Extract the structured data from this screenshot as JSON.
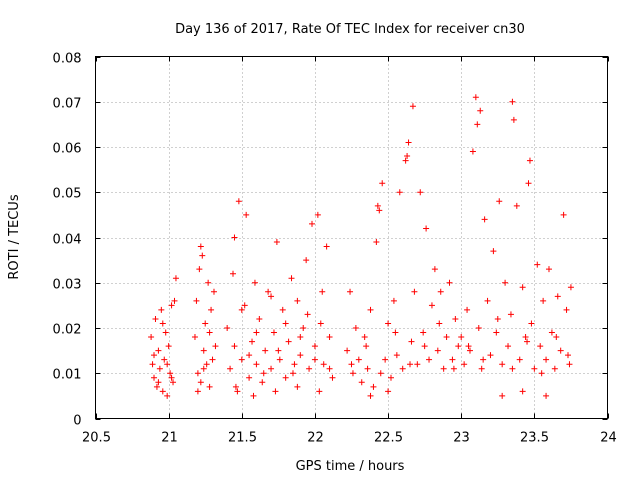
{
  "chart_data": {
    "type": "scatter",
    "title": "Day 136 of 2017, Rate Of TEC Index for receiver cn30",
    "xlabel": "GPS time / hours",
    "ylabel": "ROTI / TECUs",
    "xlim": [
      20.5,
      24
    ],
    "ylim": [
      0,
      0.08
    ],
    "xticks": [
      20.5,
      21,
      21.5,
      22,
      22.5,
      23,
      23.5,
      24
    ],
    "yticks": [
      0,
      0.01,
      0.02,
      0.03,
      0.04,
      0.05,
      0.06,
      0.07,
      0.08
    ],
    "xtick_labels": [
      "20.5",
      "21",
      "21.5",
      "22",
      "22.5",
      "23",
      "23.5",
      "24"
    ],
    "ytick_labels": [
      "0",
      "0.01",
      "0.02",
      "0.03",
      "0.04",
      "0.05",
      "0.06",
      "0.07",
      "0.08"
    ],
    "grid": true,
    "marker": "+",
    "series": [
      {
        "name": "ROTI",
        "color": "#ff0000",
        "points": [
          [
            20.88,
            0.018
          ],
          [
            20.89,
            0.012
          ],
          [
            20.9,
            0.009
          ],
          [
            20.91,
            0.022
          ],
          [
            20.92,
            0.007
          ],
          [
            20.93,
            0.015
          ],
          [
            20.94,
            0.011
          ],
          [
            20.95,
            0.024
          ],
          [
            20.96,
            0.006
          ],
          [
            20.97,
            0.013
          ],
          [
            20.98,
            0.019
          ],
          [
            20.99,
            0.005
          ],
          [
            21.0,
            0.016
          ],
          [
            21.01,
            0.01
          ],
          [
            21.02,
            0.025
          ],
          [
            21.03,
            0.008
          ],
          [
            21.04,
            0.026
          ],
          [
            21.05,
            0.031
          ],
          [
            20.9,
            0.014
          ],
          [
            20.93,
            0.008
          ],
          [
            20.96,
            0.021
          ],
          [
            20.99,
            0.012
          ],
          [
            21.02,
            0.009
          ],
          [
            21.18,
            0.018
          ],
          [
            21.19,
            0.026
          ],
          [
            21.2,
            0.01
          ],
          [
            21.21,
            0.033
          ],
          [
            21.22,
            0.008
          ],
          [
            21.23,
            0.036
          ],
          [
            21.24,
            0.015
          ],
          [
            21.25,
            0.021
          ],
          [
            21.26,
            0.012
          ],
          [
            21.27,
            0.03
          ],
          [
            21.28,
            0.007
          ],
          [
            21.29,
            0.024
          ],
          [
            21.3,
            0.013
          ],
          [
            21.31,
            0.028
          ],
          [
            21.32,
            0.016
          ],
          [
            21.2,
            0.006
          ],
          [
            21.24,
            0.011
          ],
          [
            21.28,
            0.019
          ],
          [
            21.22,
            0.038
          ],
          [
            21.4,
            0.02
          ],
          [
            21.42,
            0.011
          ],
          [
            21.44,
            0.032
          ],
          [
            21.45,
            0.04
          ],
          [
            21.46,
            0.007
          ],
          [
            21.48,
            0.048
          ],
          [
            21.5,
            0.013
          ],
          [
            21.52,
            0.025
          ],
          [
            21.53,
            0.045
          ],
          [
            21.55,
            0.009
          ],
          [
            21.57,
            0.017
          ],
          [
            21.59,
            0.03
          ],
          [
            21.6,
            0.012
          ],
          [
            21.62,
            0.022
          ],
          [
            21.64,
            0.008
          ],
          [
            21.66,
            0.015
          ],
          [
            21.68,
            0.028
          ],
          [
            21.7,
            0.011
          ],
          [
            21.72,
            0.019
          ],
          [
            21.74,
            0.039
          ],
          [
            21.76,
            0.013
          ],
          [
            21.78,
            0.024
          ],
          [
            21.8,
            0.009
          ],
          [
            21.82,
            0.017
          ],
          [
            21.84,
            0.031
          ],
          [
            21.86,
            0.012
          ],
          [
            21.88,
            0.026
          ],
          [
            21.9,
            0.014
          ],
          [
            21.92,
            0.02
          ],
          [
            21.94,
            0.035
          ],
          [
            21.96,
            0.011
          ],
          [
            21.98,
            0.043
          ],
          [
            22.0,
            0.016
          ],
          [
            22.02,
            0.045
          ],
          [
            22.04,
            0.021
          ],
          [
            22.06,
            0.012
          ],
          [
            22.08,
            0.038
          ],
          [
            22.1,
            0.018
          ],
          [
            22.12,
            0.009
          ],
          [
            21.45,
            0.016
          ],
          [
            21.5,
            0.024
          ],
          [
            21.55,
            0.014
          ],
          [
            21.6,
            0.019
          ],
          [
            21.65,
            0.01
          ],
          [
            21.7,
            0.027
          ],
          [
            21.75,
            0.015
          ],
          [
            21.8,
            0.021
          ],
          [
            21.85,
            0.01
          ],
          [
            21.9,
            0.018
          ],
          [
            21.95,
            0.023
          ],
          [
            22.0,
            0.013
          ],
          [
            22.05,
            0.028
          ],
          [
            22.1,
            0.011
          ],
          [
            21.47,
            0.006
          ],
          [
            21.58,
            0.005
          ],
          [
            21.73,
            0.006
          ],
          [
            21.88,
            0.007
          ],
          [
            22.03,
            0.006
          ],
          [
            22.22,
            0.015
          ],
          [
            22.24,
            0.028
          ],
          [
            22.26,
            0.01
          ],
          [
            22.28,
            0.02
          ],
          [
            22.3,
            0.013
          ],
          [
            22.32,
            0.008
          ],
          [
            22.34,
            0.018
          ],
          [
            22.36,
            0.011
          ],
          [
            22.38,
            0.024
          ],
          [
            22.4,
            0.007
          ],
          [
            22.42,
            0.039
          ],
          [
            22.44,
            0.046
          ],
          [
            22.46,
            0.052
          ],
          [
            22.48,
            0.013
          ],
          [
            22.5,
            0.021
          ],
          [
            22.52,
            0.009
          ],
          [
            22.54,
            0.026
          ],
          [
            22.56,
            0.014
          ],
          [
            22.58,
            0.05
          ],
          [
            22.6,
            0.011
          ],
          [
            22.62,
            0.057
          ],
          [
            22.64,
            0.061
          ],
          [
            22.66,
            0.017
          ],
          [
            22.67,
            0.069
          ],
          [
            22.68,
            0.028
          ],
          [
            22.7,
            0.012
          ],
          [
            22.72,
            0.05
          ],
          [
            22.74,
            0.019
          ],
          [
            22.76,
            0.042
          ],
          [
            22.78,
            0.013
          ],
          [
            22.8,
            0.025
          ],
          [
            22.82,
            0.033
          ],
          [
            22.84,
            0.015
          ],
          [
            22.86,
            0.028
          ],
          [
            22.88,
            0.011
          ],
          [
            22.9,
            0.018
          ],
          [
            22.92,
            0.03
          ],
          [
            22.94,
            0.013
          ],
          [
            22.96,
            0.022
          ],
          [
            22.98,
            0.016
          ],
          [
            22.25,
            0.012
          ],
          [
            22.35,
            0.016
          ],
          [
            22.45,
            0.01
          ],
          [
            22.55,
            0.019
          ],
          [
            22.65,
            0.012
          ],
          [
            22.75,
            0.016
          ],
          [
            22.85,
            0.021
          ],
          [
            22.95,
            0.011
          ],
          [
            22.38,
            0.005
          ],
          [
            22.5,
            0.006
          ],
          [
            22.63,
            0.058
          ],
          [
            22.43,
            0.047
          ],
          [
            23.0,
            0.018
          ],
          [
            23.02,
            0.012
          ],
          [
            23.04,
            0.024
          ],
          [
            23.06,
            0.015
          ],
          [
            23.08,
            0.059
          ],
          [
            23.1,
            0.071
          ],
          [
            23.11,
            0.065
          ],
          [
            23.12,
            0.02
          ],
          [
            23.13,
            0.068
          ],
          [
            23.14,
            0.011
          ],
          [
            23.16,
            0.044
          ],
          [
            23.18,
            0.026
          ],
          [
            23.2,
            0.014
          ],
          [
            23.22,
            0.037
          ],
          [
            23.24,
            0.019
          ],
          [
            23.26,
            0.048
          ],
          [
            23.28,
            0.012
          ],
          [
            23.3,
            0.03
          ],
          [
            23.32,
            0.016
          ],
          [
            23.34,
            0.023
          ],
          [
            23.35,
            0.07
          ],
          [
            23.36,
            0.066
          ],
          [
            23.38,
            0.047
          ],
          [
            23.4,
            0.013
          ],
          [
            23.42,
            0.029
          ],
          [
            23.44,
            0.018
          ],
          [
            23.46,
            0.052
          ],
          [
            23.47,
            0.057
          ],
          [
            23.48,
            0.021
          ],
          [
            23.5,
            0.011
          ],
          [
            23.52,
            0.034
          ],
          [
            23.54,
            0.016
          ],
          [
            23.56,
            0.026
          ],
          [
            23.58,
            0.013
          ],
          [
            23.6,
            0.033
          ],
          [
            23.62,
            0.019
          ],
          [
            23.64,
            0.011
          ],
          [
            23.66,
            0.027
          ],
          [
            23.68,
            0.015
          ],
          [
            23.7,
            0.045
          ],
          [
            23.72,
            0.024
          ],
          [
            23.74,
            0.012
          ],
          [
            23.75,
            0.029
          ],
          [
            23.05,
            0.016
          ],
          [
            23.15,
            0.013
          ],
          [
            23.25,
            0.022
          ],
          [
            23.35,
            0.011
          ],
          [
            23.45,
            0.017
          ],
          [
            23.55,
            0.01
          ],
          [
            23.65,
            0.018
          ],
          [
            23.73,
            0.014
          ],
          [
            23.28,
            0.005
          ],
          [
            23.42,
            0.006
          ],
          [
            23.58,
            0.005
          ]
        ]
      }
    ]
  }
}
